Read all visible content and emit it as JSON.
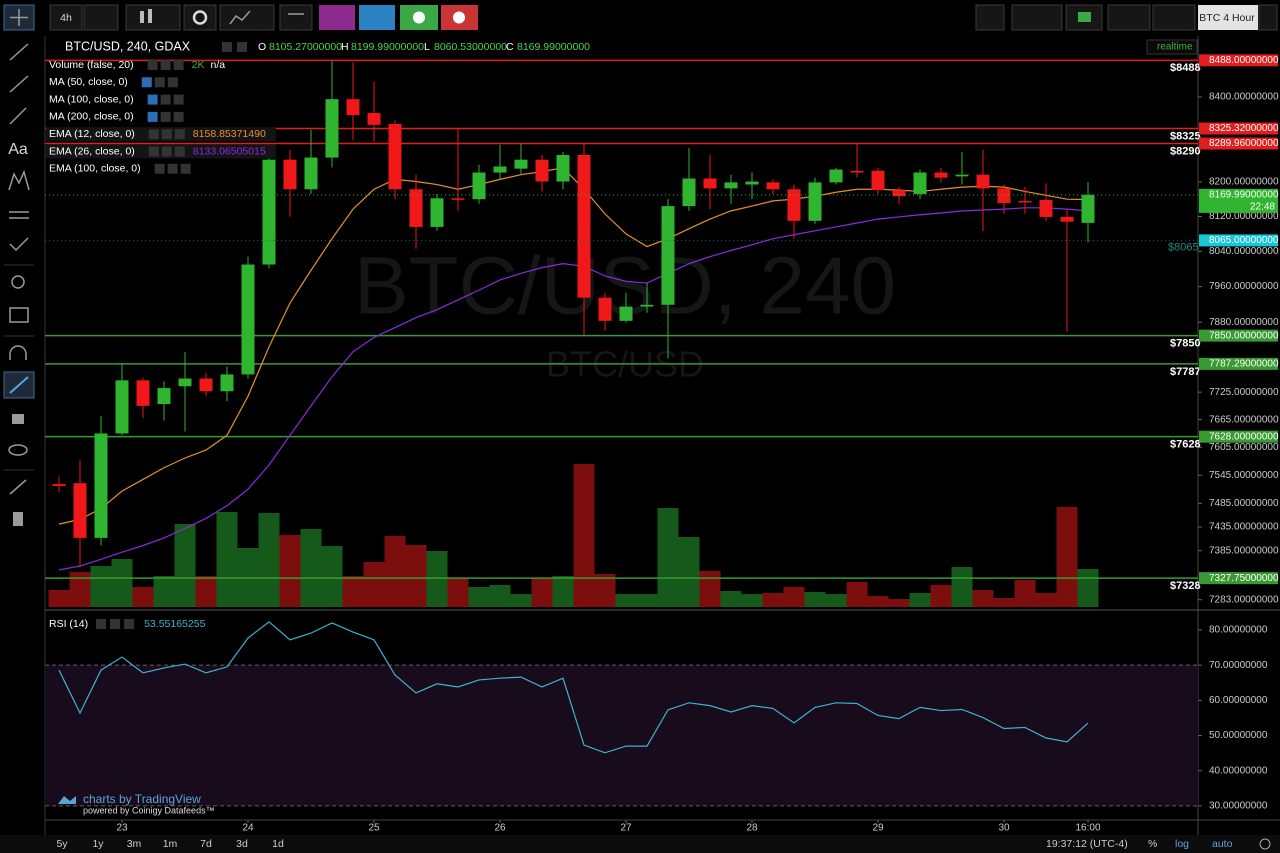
{
  "toolbar": {
    "interval": "4h",
    "layout_name": "BTC 4 Hour"
  },
  "left_toolbar": {
    "text_tool": "Aa"
  },
  "legend": {
    "symbol": "BTC/USD, 240, GDAX",
    "o_label": "O",
    "open": "8105.27000000",
    "h_label": "H",
    "high": "8199.99000000",
    "l_label": "L",
    "low": "8060.53000000",
    "c_label": "C",
    "close": "8169.99000000",
    "status": "realtime"
  },
  "indicators": [
    {
      "name": "Volume (false, 20)",
      "value": "2K",
      "extra": "n/a"
    },
    {
      "name": "MA (50, close, 0)"
    },
    {
      "name": "MA (100, close, 0)"
    },
    {
      "name": "MA (200, close, 0)"
    },
    {
      "name": "EMA (100, close, 0)"
    }
  ],
  "watermark": {
    "title": "BTC/USD, 240",
    "subtitle": "BTC/USD"
  },
  "chart_data": {
    "type": "candlestick",
    "log": true,
    "grid": false,
    "up_color": "#2fb52f",
    "down_color": "#f01818",
    "volume_up_color": "#155a1b",
    "volume_down_color": "#7d0e0e",
    "ylim": [
      7268,
      8542
    ],
    "yticks": [
      {
        "value": 8400,
        "label": "8400.00000000"
      },
      {
        "value": 8200,
        "label": "8200.00000000"
      },
      {
        "value": 8120,
        "label": "8120.00000000"
      },
      {
        "value": 8040,
        "label": "8040.00000000"
      },
      {
        "value": 7960,
        "label": "7960.00000000"
      },
      {
        "value": 7880,
        "label": "7880.00000000"
      },
      {
        "value": 7725,
        "label": "7725.00000000"
      },
      {
        "value": 7665,
        "label": "7665.00000000"
      },
      {
        "value": 7605,
        "label": "7605.00000000"
      },
      {
        "value": 7545,
        "label": "7545.00000000"
      },
      {
        "value": 7485,
        "label": "7485.00000000"
      },
      {
        "value": 7435,
        "label": "7435.00000000"
      },
      {
        "value": 7385,
        "label": "7385.00000000"
      },
      {
        "value": 7283,
        "label": "7283.00000000"
      }
    ],
    "x": [
      null,
      null,
      null,
      "23",
      null,
      null,
      null,
      null,
      null,
      "24",
      null,
      null,
      null,
      null,
      null,
      "25",
      null,
      null,
      null,
      null,
      null,
      "26",
      null,
      null,
      null,
      null,
      null,
      "27",
      null,
      null,
      null,
      null,
      null,
      "28",
      null,
      null,
      null,
      null,
      null,
      "29",
      null,
      null,
      null,
      null,
      null,
      "30",
      null,
      null,
      null,
      "16:00"
    ],
    "open": [
      7526,
      7528,
      7412,
      7635,
      7751,
      7699,
      7738,
      7755,
      7727,
      7764,
      8010,
      8252,
      8183,
      8257,
      8395,
      8362,
      8336,
      8183,
      8096,
      8162,
      8160,
      8222,
      8231,
      8252,
      8201,
      8263,
      7935,
      7883,
      7915,
      7919,
      8144,
      8208,
      8185,
      8194,
      8199,
      8183,
      8110,
      8199,
      8226,
      8226,
      8181,
      8172,
      8222,
      8213,
      8217,
      8185,
      8156,
      8158,
      8119,
      8105.27
    ],
    "high": [
      7542,
      7578,
      7673,
      7788,
      7757,
      7749,
      7814,
      7768,
      7781,
      8028,
      8275,
      8275,
      8322,
      8488,
      8483,
      8436,
      8345,
      8217,
      8172,
      8327,
      8240,
      8287,
      8291,
      8263,
      8270,
      8291,
      7946,
      7946,
      7968,
      8160,
      8279,
      8263,
      8217,
      8222,
      8206,
      8194,
      8210,
      8233,
      8291,
      8233,
      8188,
      8229,
      8233,
      8270,
      8275,
      8194,
      8188,
      8197,
      8137,
      8199.99
    ],
    "low": [
      7509,
      7351,
      7396,
      7631,
      7669,
      7663,
      7639,
      7716,
      7705,
      7755,
      8001,
      8119,
      8172,
      8234,
      8298,
      8294,
      8160,
      8046,
      8087,
      8133,
      8149,
      8206,
      8217,
      8178,
      8183,
      7851,
      7861,
      7879,
      7901,
      7799,
      8133,
      8137,
      8149,
      8160,
      8172,
      8069,
      8103,
      8194,
      8210,
      8172,
      8149,
      8160,
      8199,
      8194,
      8087,
      8126,
      8126,
      8110,
      7859,
      8060.53
    ],
    "close": [
      7522,
      7412,
      7635,
      7751,
      7695,
      7734,
      7755,
      7727,
      7764,
      8010,
      8252,
      8183,
      8257,
      8395,
      8357,
      8334,
      8183,
      8096,
      8162,
      8160,
      8222,
      8236,
      8252,
      8201,
      8263,
      7935,
      7883,
      7915,
      7919,
      8144,
      8208,
      8185,
      8199,
      8201,
      8183,
      8110,
      8199,
      8229,
      8222,
      8181,
      8167,
      8222,
      8210,
      8217,
      8185,
      8151,
      8153,
      8119,
      8108,
      8169.99
    ],
    "volume": [
      17,
      35,
      41,
      48,
      20,
      31,
      83,
      31,
      95,
      59,
      94,
      72,
      78,
      61,
      31,
      45,
      71,
      62,
      56,
      29,
      20,
      22,
      13,
      29,
      31,
      143,
      33,
      13,
      13,
      99,
      70,
      36,
      16,
      13,
      14,
      20,
      15,
      13,
      25,
      11,
      8,
      14,
      22,
      40,
      17,
      9,
      27,
      14,
      100,
      38
    ],
    "series": [
      {
        "name": "EMA (12, close, 0)",
        "color": "#e8902c",
        "legend_value": "8158.85371490",
        "values": [
          7441,
          7451,
          7474,
          7511,
          7536,
          7561,
          7582,
          7599,
          7631,
          7716,
          7825,
          7923,
          7997,
          8069,
          8137,
          8183,
          8206,
          8201,
          8194,
          8183,
          8194,
          8206,
          8217,
          8224,
          8233,
          8183,
          8126,
          8080,
          8051,
          8069,
          8092,
          8114,
          8133,
          8144,
          8156,
          8160,
          8167,
          8176,
          8183,
          8183,
          8181,
          8178,
          8183,
          8188,
          8190,
          8188,
          8178,
          8169,
          8160,
          8159
        ]
      },
      {
        "name": "EMA (26, close, 0)",
        "color": "#8a2be2",
        "legend_value": "8133.06505015",
        "values": [
          7345,
          7353,
          7367,
          7382,
          7396,
          7412,
          7432,
          7453,
          7480,
          7515,
          7567,
          7631,
          7695,
          7759,
          7814,
          7846,
          7868,
          7890,
          7908,
          7930,
          7952,
          7975,
          7990,
          8003,
          8012,
          8006,
          7984,
          7972,
          7968,
          7990,
          8012,
          8028,
          8042,
          8055,
          8069,
          8078,
          8087,
          8096,
          8105,
          8114,
          8119,
          8124,
          8128,
          8133,
          8135,
          8137,
          8140,
          8140,
          8137,
          8133
        ]
      }
    ],
    "levels": [
      {
        "value": 8488,
        "label": "8488.00000000",
        "tag": "$8488",
        "color": "#e01e1e"
      },
      {
        "value": 8325.32,
        "label": "8325.32000000",
        "tag": "$8325",
        "color": "#e01e1e"
      },
      {
        "value": 8289.96,
        "label": "8289.96000000",
        "tag": "$8290",
        "color": "#e01e1e"
      },
      {
        "value": 7850,
        "label": "7850.00000000",
        "tag": "$7850",
        "color": "#3a9a32"
      },
      {
        "value": 7787.29,
        "label": "7787.29000000",
        "tag": "$7787",
        "color": "#3a9a32"
      },
      {
        "value": 7628,
        "label": "7628.00000000",
        "tag": "$7628",
        "color": "#3a9a32"
      },
      {
        "value": 7327.75,
        "label": "7327.75000000",
        "tag": "$7328",
        "color": "#3a9a32"
      }
    ],
    "last_price": {
      "value": 8169.99,
      "label": "8169.99000000",
      "countdown": "22:48",
      "color": "#2fb52f"
    },
    "bid_price": {
      "value": 8065,
      "label": "8065.00000000",
      "tag": "$8065",
      "color": "#17c7d6"
    }
  },
  "rsi": {
    "name": "RSI (14)",
    "legend_value": "53.55165255",
    "color": "#3fb1d1",
    "ylim": [
      26,
      85.1
    ],
    "band": [
      30,
      70
    ],
    "yticks": [
      {
        "value": 80,
        "label": "80.00000000"
      },
      {
        "value": 70,
        "label": "70.00000000"
      },
      {
        "value": 60,
        "label": "60.00000000"
      },
      {
        "value": 50,
        "label": "50.00000000"
      },
      {
        "value": 40,
        "label": "40.00000000"
      },
      {
        "value": 30,
        "label": "30.00000000"
      }
    ],
    "values": [
      68.6,
      56.4,
      68.6,
      72.3,
      67.8,
      69.2,
      70.3,
      67.8,
      69.5,
      77.7,
      82.3,
      77.2,
      79.1,
      82.0,
      79.4,
      77.2,
      67.2,
      62.1,
      64.7,
      63.8,
      65.8,
      66.3,
      66.6,
      63.8,
      66.3,
      47.3,
      45.1,
      47.0,
      47.0,
      57.3,
      59.3,
      58.5,
      56.7,
      58.5,
      57.7,
      53.6,
      58.0,
      59.3,
      59.1,
      55.7,
      54.8,
      58.0,
      57.1,
      57.4,
      55.1,
      52.0,
      52.3,
      49.3,
      48.2,
      53.55
    ]
  },
  "branding": {
    "line1": "charts by TradingView",
    "line2": "powered by Coinigy Datafeeds™"
  },
  "bottom_bar": {
    "ranges": [
      "5y",
      "1y",
      "3m",
      "1m",
      "7d",
      "3d",
      "1d"
    ],
    "clock": "19:37:12 (UTC-4)",
    "percent": "%",
    "log": "log",
    "auto": "auto"
  }
}
